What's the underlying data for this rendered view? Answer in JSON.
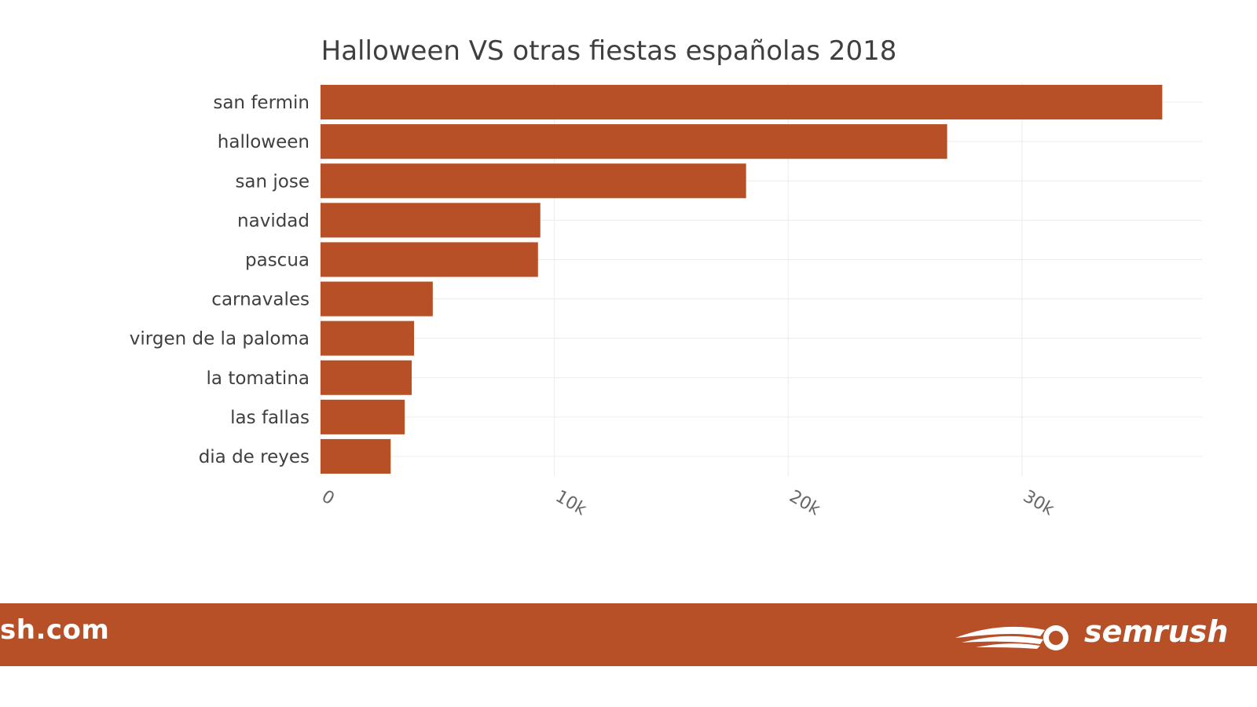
{
  "chart_data": {
    "type": "bar",
    "orientation": "horizontal",
    "title": "Halloween VS otras fiestas españolas 2018",
    "categories": [
      "san fermin",
      "halloween",
      "san jose",
      "navidad",
      "pascua",
      "carnavales",
      "virgen de la paloma",
      "la tomatina",
      "las fallas",
      "dia de reyes"
    ],
    "values": [
      36000,
      26800,
      18200,
      9400,
      9300,
      4800,
      4000,
      3900,
      3600,
      3000
    ],
    "xlim": [
      0,
      37700
    ],
    "xticks": [
      0,
      10000,
      20000,
      30000
    ],
    "xtick_labels": [
      "0",
      "10k",
      "20k",
      "30k"
    ],
    "xlabel": "",
    "ylabel": "",
    "grid": true,
    "bar_color": "#b85027"
  },
  "footer": {
    "domain_text": "sh.com",
    "brand_text": "semrush",
    "logo_icon": "semrush-fireball-icon",
    "background_color": "#b85027"
  }
}
